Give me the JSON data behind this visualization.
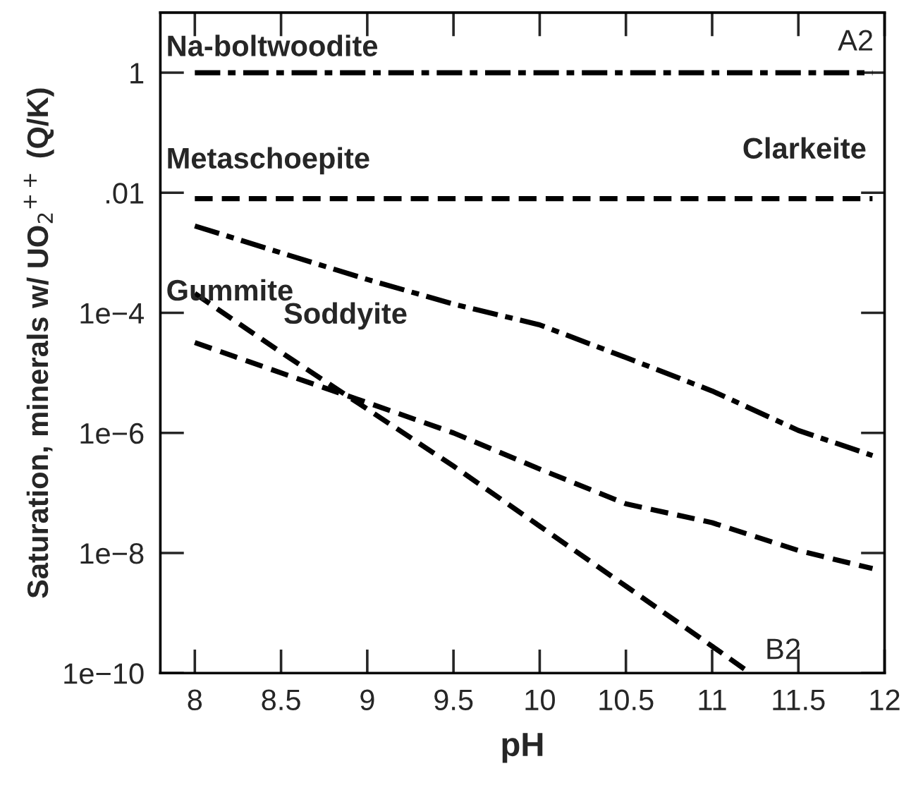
{
  "chart_data": {
    "type": "line",
    "xlabel": "pH",
    "ylabel": "Saturation, minerals w/ UO$_{2}$$^{++}$ (Q/K)",
    "log": "y",
    "xlim": [
      7.8,
      12
    ],
    "ylim": [
      1e-10,
      10
    ],
    "xticks": [
      8,
      8.5,
      9,
      9.5,
      10,
      10.5,
      11,
      11.5,
      12
    ],
    "yticks": [
      {
        "value": 1e-10,
        "label": "1e−10"
      },
      {
        "value": 1e-08,
        "label": "1e−8"
      },
      {
        "value": 1e-06,
        "label": "1e−6"
      },
      {
        "value": 0.0001,
        "label": "1e−4"
      },
      {
        "value": 0.01,
        "label": ".01"
      },
      1
    ],
    "grid": false,
    "legend": false,
    "marker": "none",
    "series": [
      {
        "color": "#000000",
        "line_style": "dashdot",
        "x": [
          8,
          11.93
        ],
        "values": [
          1,
          1
        ]
      },
      {
        "color": "#000000",
        "line_style": "dashed",
        "x": [
          8,
          11.93
        ],
        "values": [
          0.008,
          0.008
        ]
      },
      {
        "color": "#000000",
        "line_style": "dashdot",
        "x": [
          8,
          8.5,
          9,
          9.5,
          10,
          10.5,
          11,
          11.5,
          11.93
        ],
        "values": [
          0.0028,
          0.001,
          0.00036,
          0.00014,
          6.3e-05,
          1.8e-05,
          5e-06,
          1.1e-06,
          4.2e-07
        ]
      },
      {
        "color": "#000000",
        "line_style": "dashed",
        "x": [
          8,
          8.5,
          9,
          9.5,
          10,
          10.5,
          11,
          11.22
        ],
        "values": [
          0.00021,
          2.2e-05,
          2.5e-06,
          2.8e-07,
          2.8e-08,
          2.8e-09,
          2.8e-10,
          1e-10
        ]
      },
      {
        "color": "#000000",
        "line_style": "dashed",
        "x": [
          8,
          8.5,
          9,
          9.5,
          10,
          10.5,
          11,
          11.5,
          11.93
        ],
        "values": [
          3.2e-05,
          1e-05,
          3.2e-06,
          1e-06,
          2.5e-07,
          6.6e-08,
          3.2e-08,
          1.1e-08,
          5.5e-09
        ]
      }
    ],
    "annotations": [
      "Na-boltwoodite",
      "Metaschoepite",
      "Clarkeite",
      "Gummite",
      "Soddyite",
      "A2",
      "B2"
    ]
  }
}
